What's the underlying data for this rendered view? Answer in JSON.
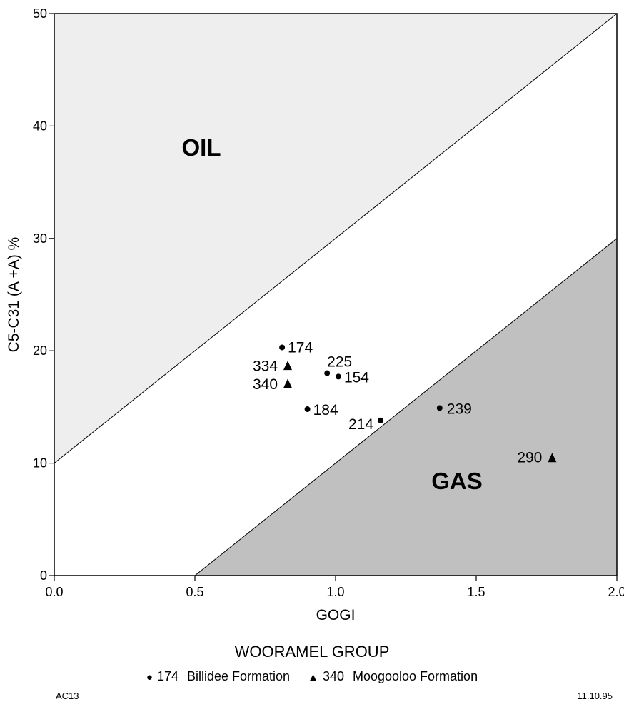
{
  "chart_data": {
    "type": "scatter",
    "xlabel": "GOGI",
    "ylabel": "C5-C31 (A +A) %",
    "xlim": [
      0.0,
      2.0
    ],
    "ylim": [
      0,
      50
    ],
    "x_ticks": [
      "0.0",
      "0.5",
      "1.0",
      "1.5",
      "2.0"
    ],
    "x_tick_values": [
      0.0,
      0.5,
      1.0,
      1.5,
      2.0
    ],
    "y_ticks": [
      "0",
      "10",
      "20",
      "30",
      "40",
      "50"
    ],
    "y_tick_values": [
      0,
      10,
      20,
      30,
      40,
      50
    ],
    "grid": false,
    "regions": [
      {
        "label": "OIL",
        "color": "#eeeeee",
        "boundary": {
          "x": [
            0.0,
            2.0
          ],
          "y": [
            10,
            50
          ]
        }
      },
      {
        "label": "GAS",
        "color": "#c0c0c0",
        "boundary": {
          "x": [
            0.5,
            2.0
          ],
          "y": [
            0,
            30
          ]
        }
      }
    ],
    "series": [
      {
        "name": "Billidee Formation",
        "marker": "circle",
        "points": [
          {
            "label": "174",
            "x": 0.81,
            "y": 20.3
          },
          {
            "label": "225",
            "x": 0.97,
            "y": 18.0
          },
          {
            "label": "154",
            "x": 1.01,
            "y": 17.7
          },
          {
            "label": "184",
            "x": 0.9,
            "y": 14.8
          },
          {
            "label": "214",
            "x": 1.16,
            "y": 13.8
          },
          {
            "label": "239",
            "x": 1.37,
            "y": 14.9
          }
        ]
      },
      {
        "name": "Moogooloo Formation",
        "marker": "triangle",
        "points": [
          {
            "label": "334",
            "x": 0.83,
            "y": 18.7
          },
          {
            "label": "340",
            "x": 0.83,
            "y": 17.1
          },
          {
            "label": "290",
            "x": 1.77,
            "y": 10.5
          }
        ]
      }
    ]
  },
  "footer": {
    "group_title": "WOORAMEL GROUP",
    "legend": [
      {
        "symbol": "●",
        "sample": "174",
        "label": "Billidee Formation"
      },
      {
        "symbol": "▲",
        "sample": "340",
        "label": "Moogooloo Formation"
      }
    ],
    "code_left": "AC13",
    "date": "11.10.95"
  }
}
